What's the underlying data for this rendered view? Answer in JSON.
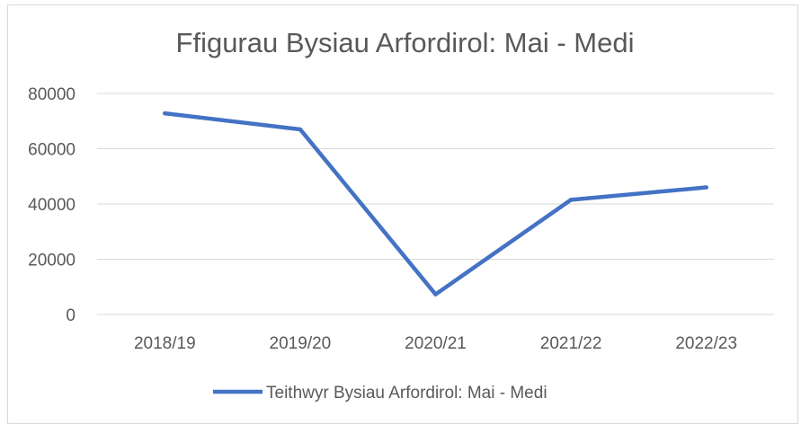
{
  "chart_data": {
    "type": "line",
    "title": "Ffigurau Bysiau Arfordirol: Mai - Medi",
    "categories": [
      "2018/19",
      "2019/20",
      "2020/21",
      "2021/22",
      "2022/23"
    ],
    "series": [
      {
        "name": "Teithwyr Bysiau Arfordirol: Mai - Medi",
        "values": [
          72800,
          67000,
          7300,
          41500,
          46000
        ],
        "color": "#4472c4"
      }
    ],
    "yticks": [
      "0",
      "20000",
      "40000",
      "60000",
      "80000"
    ],
    "ylim": [
      0,
      80000
    ],
    "grid": true,
    "legend": "bottom"
  }
}
